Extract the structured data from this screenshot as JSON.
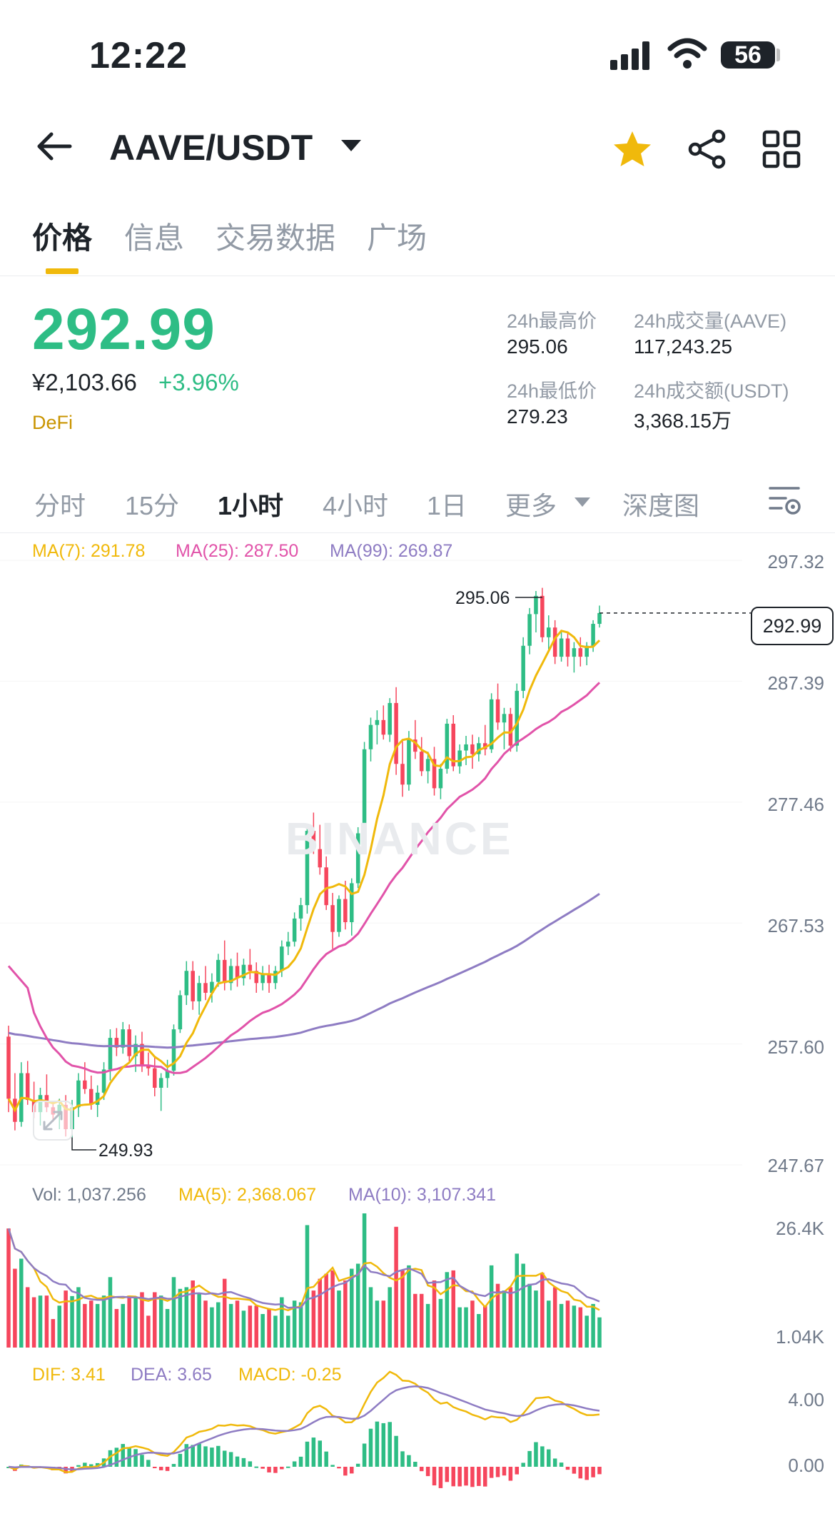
{
  "status": {
    "time": "12:22",
    "battery": "56"
  },
  "header": {
    "pair": "AAVE/USDT"
  },
  "tabs": [
    {
      "label": "价格",
      "active": true
    },
    {
      "label": "信息",
      "active": false
    },
    {
      "label": "交易数据",
      "active": false
    },
    {
      "label": "广场",
      "active": false
    }
  ],
  "price": {
    "last": "292.99",
    "fiat": "¥2,103.66",
    "change": "+3.96%",
    "tag": "DeFi",
    "up_color": "#2ebd85",
    "down_color": "#f6465d"
  },
  "stats": {
    "high_label": "24h最高价",
    "high": "295.06",
    "low_label": "24h最低价",
    "low": "279.23",
    "vol_label": "24h成交量(AAVE)",
    "vol": "117,243.25",
    "turnover_label": "24h成交额(USDT)",
    "turnover": "3,368.15万"
  },
  "intervals": [
    {
      "label": "分时",
      "active": false
    },
    {
      "label": "15分",
      "active": false
    },
    {
      "label": "1小时",
      "active": true
    },
    {
      "label": "4小时",
      "active": false
    },
    {
      "label": "1日",
      "active": false
    },
    {
      "label": "更多",
      "active": false
    },
    {
      "label": "深度图",
      "active": false
    }
  ],
  "indicators": {
    "ma7": "MA(7): 291.78",
    "ma25": "MA(25): 287.50",
    "ma99": "MA(99): 269.87",
    "vol": "Vol: 1,037.256",
    "vol_ma5": "MA(5): 2,368.067",
    "vol_ma10": "MA(10): 3,107.341",
    "dif": "DIF: 3.41",
    "dea": "DEA: 3.65",
    "macd": "MACD: -0.25"
  },
  "price_axis": [
    "297.32",
    "287.39",
    "277.46",
    "267.53",
    "257.60",
    "247.67"
  ],
  "vol_axis": [
    "26.4K",
    "1.04K"
  ],
  "macd_axis": [
    "4.00",
    "0.00"
  ],
  "chart_markers": {
    "high": "295.06",
    "low": "249.93",
    "last": "292.99"
  },
  "watermark": "BINANCE",
  "chart_data": {
    "type": "candlestick",
    "interval": "1小时",
    "ylim": [
      247.67,
      297.32
    ],
    "candles_ohlc": [
      [
        258.2,
        259.1,
        252.0,
        253.1
      ],
      [
        253.1,
        255.2,
        250.5,
        251.2
      ],
      [
        251.2,
        256.1,
        250.8,
        255.2
      ],
      [
        255.2,
        256.2,
        252.6,
        253.0
      ],
      [
        253.0,
        254.5,
        251.5,
        252.0
      ],
      [
        252.0,
        254.0,
        250.9,
        253.4
      ],
      [
        253.4,
        255.1,
        252.0,
        252.4
      ],
      [
        252.4,
        252.9,
        251.2,
        251.8
      ],
      [
        251.8,
        253.1,
        250.6,
        252.6
      ],
      [
        252.6,
        253.4,
        250.0,
        250.6
      ],
      [
        250.6,
        253.0,
        249.93,
        252.4
      ],
      [
        252.4,
        255.2,
        251.6,
        254.6
      ],
      [
        254.6,
        256.1,
        253.5,
        253.9
      ],
      [
        253.9,
        255.0,
        252.2,
        252.6
      ],
      [
        252.6,
        254.2,
        251.6,
        253.6
      ],
      [
        253.6,
        256.1,
        253.0,
        255.5
      ],
      [
        255.5,
        258.8,
        254.6,
        258.1
      ],
      [
        258.1,
        258.9,
        256.6,
        257.3
      ],
      [
        257.3,
        259.4,
        256.8,
        258.8
      ],
      [
        258.8,
        259.2,
        256.1,
        256.6
      ],
      [
        256.6,
        258.3,
        255.3,
        257.6
      ],
      [
        257.6,
        258.6,
        255.3,
        255.9
      ],
      [
        255.9,
        256.9,
        255.0,
        255.6
      ],
      [
        255.6,
        256.6,
        253.3,
        254.0
      ],
      [
        254.0,
        255.2,
        252.1,
        254.8
      ],
      [
        254.8,
        256.3,
        254.0,
        255.4
      ],
      [
        255.4,
        259.2,
        255.0,
        258.8
      ],
      [
        258.8,
        262.0,
        258.5,
        261.6
      ],
      [
        261.6,
        264.4,
        260.8,
        263.6
      ],
      [
        263.6,
        264.4,
        260.4,
        261.1
      ],
      [
        261.1,
        263.2,
        260.0,
        262.6
      ],
      [
        262.6,
        264.0,
        261.2,
        261.8
      ],
      [
        261.8,
        263.4,
        261.0,
        262.7
      ],
      [
        262.7,
        265.0,
        262.3,
        264.5
      ],
      [
        264.5,
        266.1,
        262.0,
        262.6
      ],
      [
        262.6,
        264.6,
        262.0,
        264.0
      ],
      [
        264.0,
        265.1,
        262.3,
        263.0
      ],
      [
        263.0,
        264.6,
        262.4,
        264.1
      ],
      [
        264.1,
        265.4,
        262.9,
        263.6
      ],
      [
        263.6,
        264.3,
        261.8,
        262.6
      ],
      [
        262.6,
        264.0,
        262.0,
        263.4
      ],
      [
        263.4,
        264.1,
        261.8,
        262.6
      ],
      [
        262.6,
        264.0,
        262.1,
        263.6
      ],
      [
        263.6,
        266.1,
        263.1,
        265.6
      ],
      [
        265.6,
        266.8,
        264.9,
        266.0
      ],
      [
        266.0,
        268.4,
        265.6,
        267.9
      ],
      [
        267.9,
        269.6,
        266.9,
        269.0
      ],
      [
        269.0,
        275.6,
        268.3,
        275.1
      ],
      [
        275.1,
        276.6,
        273.2,
        273.6
      ],
      [
        273.6,
        275.6,
        271.5,
        272.1
      ],
      [
        272.1,
        273.0,
        268.6,
        269.0
      ],
      [
        269.0,
        270.0,
        265.4,
        266.8
      ],
      [
        266.8,
        269.8,
        266.4,
        269.5
      ],
      [
        269.5,
        271.0,
        267.0,
        267.6
      ],
      [
        267.6,
        271.2,
        266.5,
        270.8
      ],
      [
        270.8,
        275.4,
        270.4,
        274.9
      ],
      [
        274.9,
        282.4,
        274.4,
        281.8
      ],
      [
        281.8,
        284.4,
        280.8,
        283.8
      ],
      [
        283.8,
        285.0,
        282.2,
        284.2
      ],
      [
        284.2,
        285.4,
        282.6,
        283.0
      ],
      [
        283.0,
        286.0,
        282.4,
        285.6
      ],
      [
        285.6,
        286.9,
        279.7,
        280.6
      ],
      [
        280.6,
        282.5,
        277.9,
        278.9
      ],
      [
        278.9,
        283.3,
        278.4,
        282.6
      ],
      [
        282.6,
        284.2,
        281.0,
        281.6
      ],
      [
        281.6,
        282.8,
        279.6,
        280.0
      ],
      [
        280.0,
        281.6,
        279.0,
        281.0
      ],
      [
        281.0,
        282.0,
        278.0,
        278.6
      ],
      [
        278.6,
        280.6,
        277.7,
        280.2
      ],
      [
        280.2,
        284.3,
        279.8,
        283.9
      ],
      [
        283.9,
        284.6,
        280.0,
        280.4
      ],
      [
        280.4,
        282.2,
        279.8,
        281.7
      ],
      [
        281.7,
        282.9,
        280.5,
        282.2
      ],
      [
        282.2,
        283.0,
        280.2,
        281.4
      ],
      [
        281.4,
        282.8,
        280.8,
        282.3
      ],
      [
        282.3,
        283.8,
        281.3,
        281.8
      ],
      [
        281.8,
        286.4,
        281.5,
        285.9
      ],
      [
        285.9,
        287.2,
        283.4,
        284.0
      ],
      [
        284.0,
        285.2,
        281.8,
        284.7
      ],
      [
        284.7,
        285.2,
        281.6,
        282.1
      ],
      [
        282.1,
        287.2,
        281.6,
        286.6
      ],
      [
        286.6,
        291.0,
        286.0,
        290.3
      ],
      [
        290.3,
        293.4,
        289.6,
        292.9
      ],
      [
        292.9,
        294.8,
        291.4,
        294.4
      ],
      [
        294.4,
        295.06,
        290.6,
        291.0
      ],
      [
        291.0,
        292.8,
        290.0,
        291.8
      ],
      [
        291.8,
        292.4,
        288.8,
        289.4
      ],
      [
        289.4,
        291.6,
        289.0,
        290.9
      ],
      [
        290.9,
        291.4,
        288.6,
        289.4
      ],
      [
        289.4,
        290.6,
        288.1,
        290.1
      ],
      [
        290.1,
        291.0,
        288.6,
        289.4
      ],
      [
        289.4,
        290.6,
        288.7,
        290.3
      ],
      [
        290.3,
        292.4,
        289.8,
        292.1
      ],
      [
        292.1,
        293.6,
        291.8,
        292.99
      ]
    ],
    "volume_axis": [
      "26.4K",
      "1.04K"
    ],
    "macd_axis": [
      "4.00",
      "0.00"
    ]
  }
}
